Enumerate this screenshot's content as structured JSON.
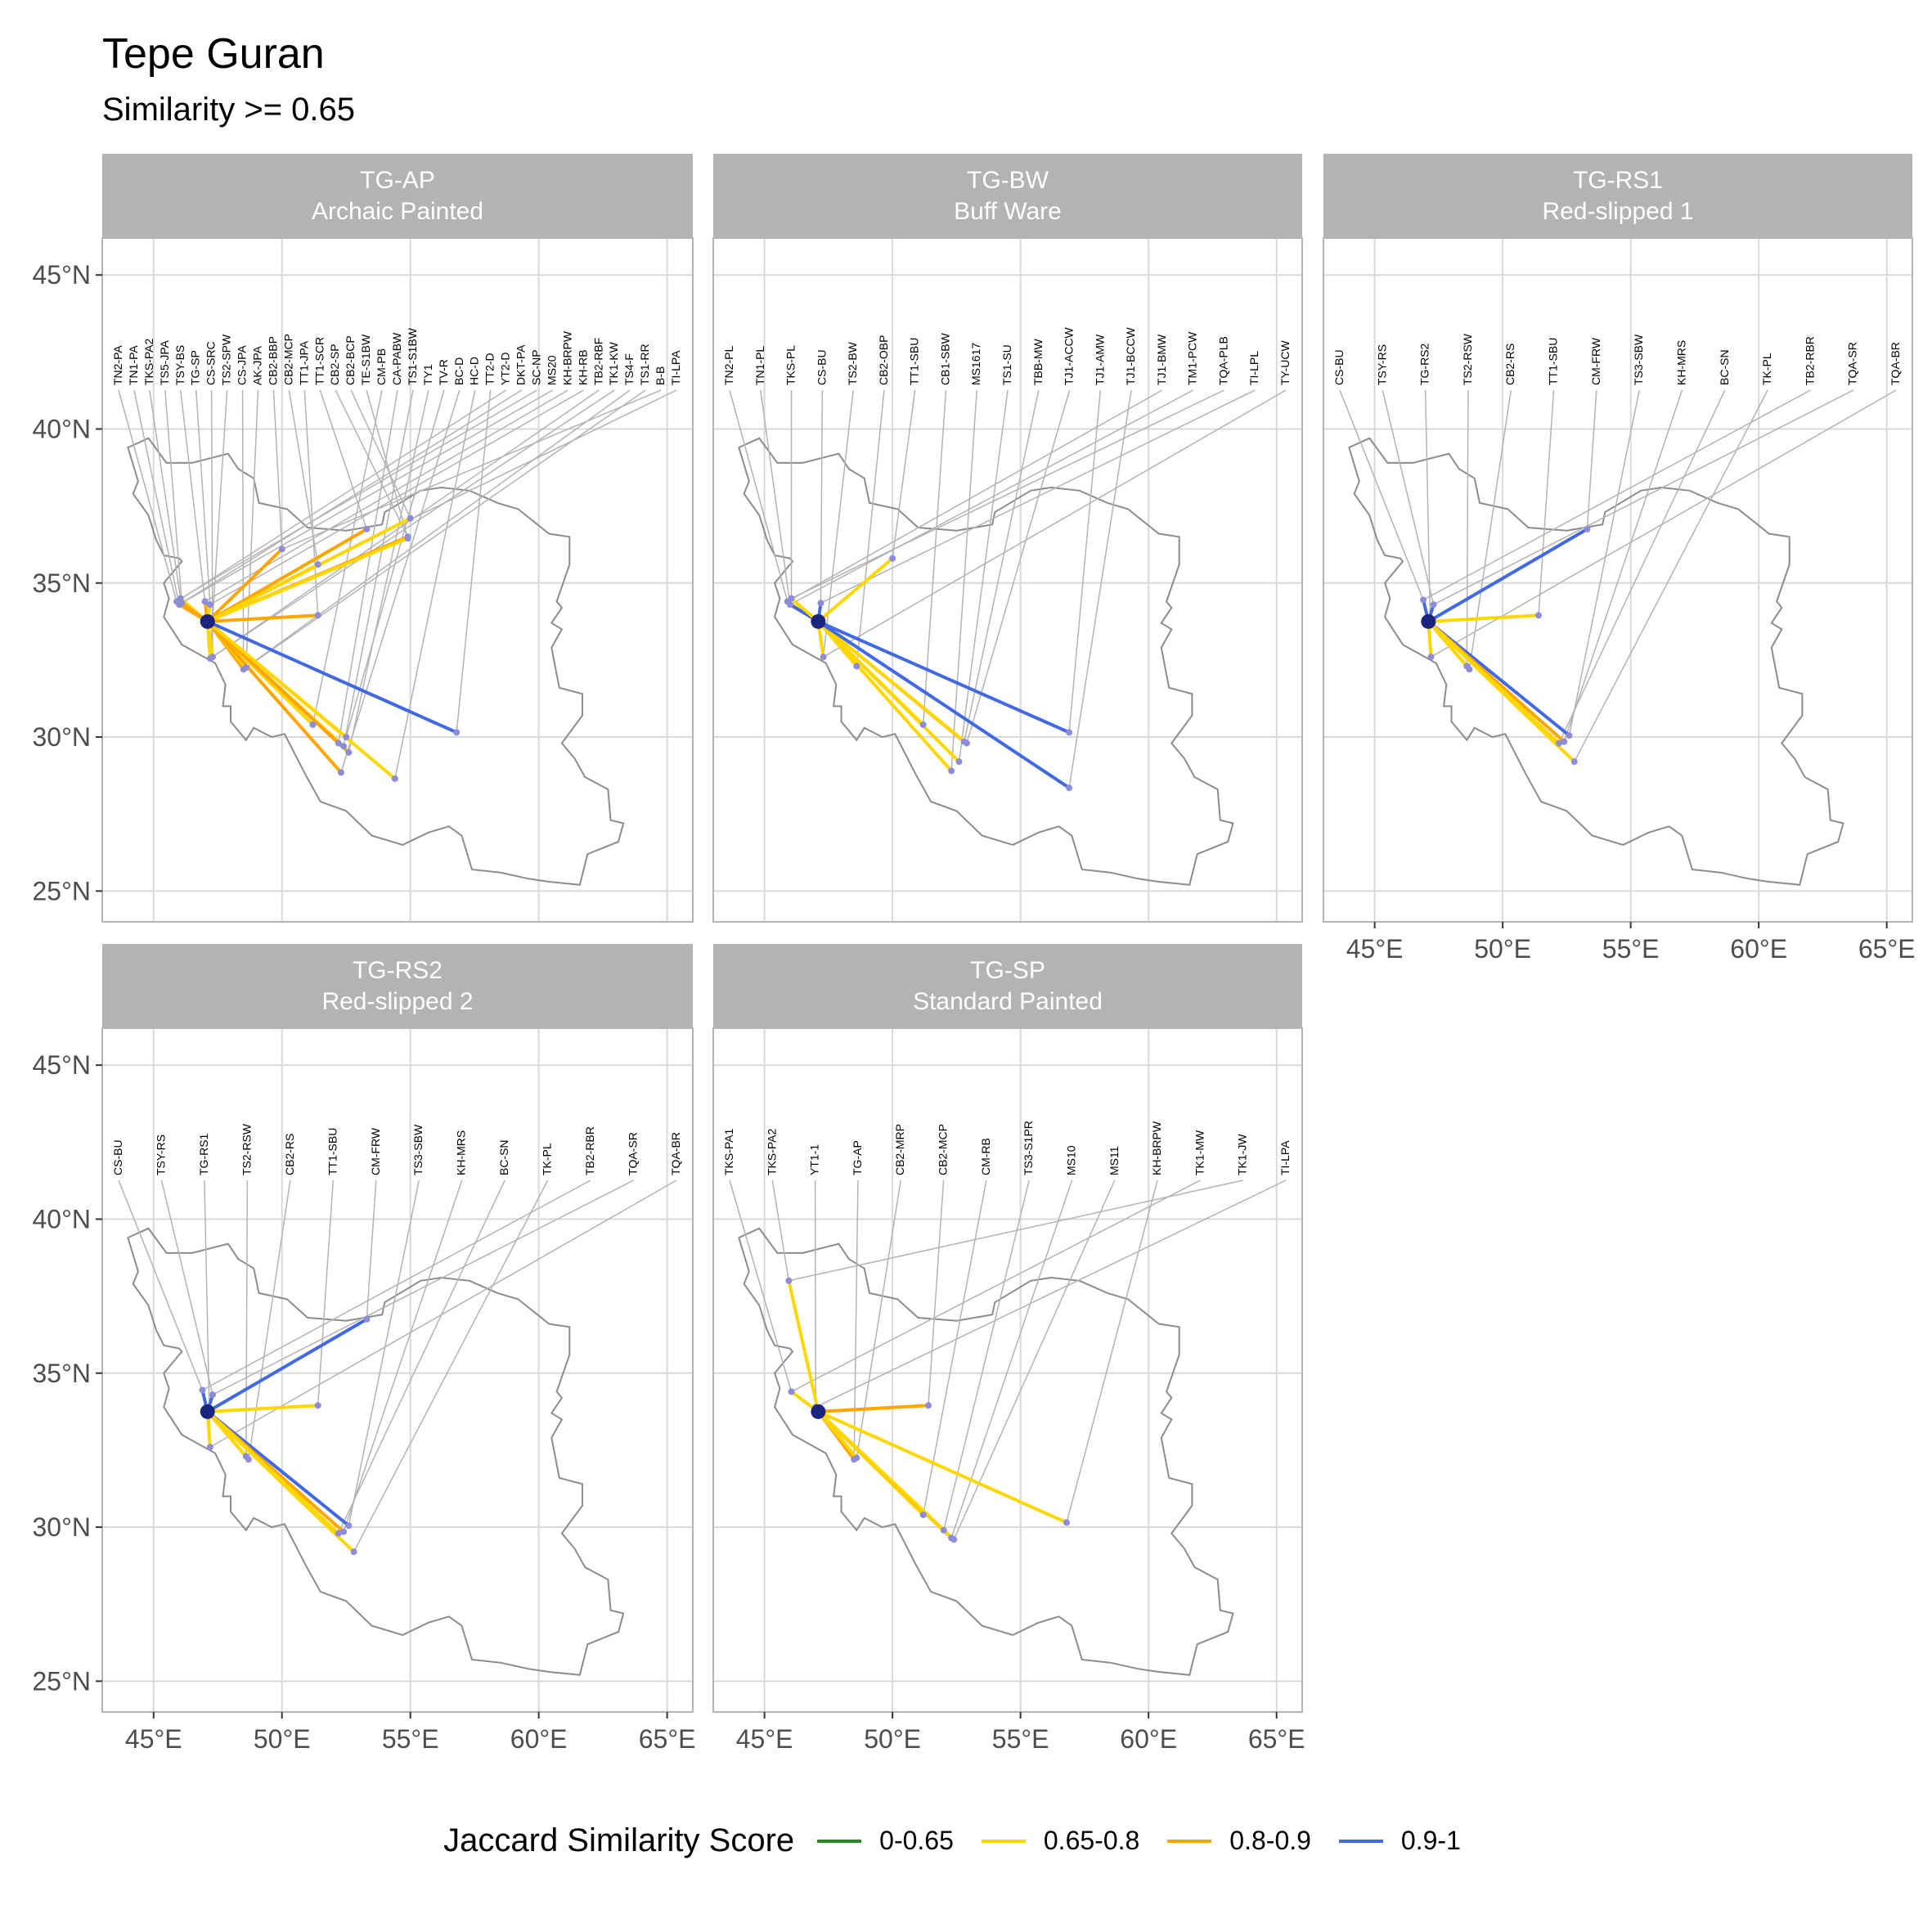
{
  "title": "Tepe Guran",
  "subtitle": "Similarity >= 0.65",
  "legend": {
    "title": "Jaccard Similarity Score",
    "items": [
      {
        "label": "0-0.65",
        "color": "#228B22"
      },
      {
        "label": "0.65-0.8",
        "color": "#FFD700"
      },
      {
        "label": "0.8-0.9",
        "color": "#FFA500"
      },
      {
        "label": "0.9-1",
        "color": "#4169E1"
      }
    ]
  },
  "colors": {
    "strip_bg": "#b3b3b3",
    "grid": "#d9d9d9",
    "outline": "#8c8c8c",
    "leader": "#b3b3b3",
    "point": "#8c8cd9",
    "origin": "#1a237e"
  },
  "chart_data": {
    "type": "map-network",
    "x_axis": {
      "ticks": [
        "45°E",
        "50°E",
        "55°E",
        "60°E",
        "65°E"
      ],
      "values": [
        45,
        50,
        55,
        60,
        65
      ],
      "range": [
        43,
        66
      ]
    },
    "y_axis": {
      "ticks": [
        "25°N",
        "30°N",
        "35°N",
        "40°N",
        "45°N"
      ],
      "values": [
        25,
        30,
        35,
        40,
        45
      ],
      "range": [
        24,
        46.2
      ]
    },
    "origin": {
      "site": "TG",
      "lon": 47.1,
      "lat": 33.75
    },
    "panels": [
      {
        "code": "TG-AP",
        "name": "Archaic Painted",
        "labels": [
          "TN2-PA",
          "TN1-PA",
          "TKS-PA2",
          "TS5-JPA",
          "TSY-BS",
          "TG-SP",
          "CS-SRC",
          "TS2-SPW",
          "CS-JPA",
          "AK-JPA",
          "CB2-BBP",
          "CB2-MCP",
          "TT1-JPA",
          "TT1-SCR",
          "CB2-SP",
          "CB2-BCP",
          "TE-S1BW",
          "CM-PB",
          "CA-PABW",
          "TS1-S1BW",
          "TY1",
          "TV-R",
          "BC-D",
          "HC-D",
          "TT2-D",
          "YT2-D",
          "DKT-PA",
          "SC-NP",
          "MS20",
          "KH-BRPW",
          "KH-RB",
          "TB2-RBF",
          "TK1-KW",
          "TS4-F",
          "TS1-RR",
          "B-B",
          "TI-LPA"
        ],
        "sites": [
          {
            "lon": 45.9,
            "lat": 34.4,
            "band": "0.8-0.9"
          },
          {
            "lon": 46.0,
            "lat": 34.3,
            "band": "0.8-0.9"
          },
          {
            "lon": 46.05,
            "lat": 34.5,
            "band": "0.65-0.8"
          },
          {
            "lon": 46.1,
            "lat": 34.35,
            "band": "0.8-0.9"
          },
          {
            "lon": 47.0,
            "lat": 34.4,
            "band": "0.8-0.9"
          },
          {
            "lon": 47.2,
            "lat": 34.3,
            "band": "0.65-0.8"
          },
          {
            "lon": 47.3,
            "lat": 32.6,
            "band": "0.65-0.8"
          },
          {
            "lon": 47.2,
            "lat": 32.55,
            "band": "0.65-0.8"
          },
          {
            "lon": 48.5,
            "lat": 32.2,
            "band": "0.8-0.9"
          },
          {
            "lon": 48.6,
            "lat": 32.25,
            "band": "0.65-0.8"
          },
          {
            "lon": 50.0,
            "lat": 36.1,
            "band": "0.8-0.9"
          },
          {
            "lon": 51.4,
            "lat": 35.6,
            "band": "0.65-0.8"
          },
          {
            "lon": 51.4,
            "lat": 33.95,
            "band": "0.8-0.9"
          },
          {
            "lon": 53.3,
            "lat": 36.75,
            "band": "0.8-0.9"
          },
          {
            "lon": 54.9,
            "lat": 36.5,
            "band": "0.8-0.9"
          },
          {
            "lon": 55.0,
            "lat": 37.1,
            "band": "0.65-0.8"
          },
          {
            "lon": 54.9,
            "lat": 36.45,
            "band": "0.65-0.8"
          },
          {
            "lon": 51.2,
            "lat": 30.4,
            "band": "0.65-0.8"
          },
          {
            "lon": 52.2,
            "lat": 29.8,
            "band": "0.8-0.9"
          },
          {
            "lon": 52.4,
            "lat": 29.7,
            "band": "0.65-0.8"
          },
          {
            "lon": 52.6,
            "lat": 29.5,
            "band": "0.8-0.9"
          },
          {
            "lon": 52.5,
            "lat": 30.0,
            "band": "0.65-0.8"
          },
          {
            "lon": 52.3,
            "lat": 28.85,
            "band": "0.8-0.9"
          },
          {
            "lon": 54.4,
            "lat": 28.65,
            "band": "0.65-0.8"
          },
          {
            "lon": 56.8,
            "lat": 30.15,
            "band": "0.9-1"
          }
        ]
      },
      {
        "code": "TG-BW",
        "name": "Buff Ware",
        "labels": [
          "TN2-PL",
          "TN1-PL",
          "TKS-PL",
          "CS-BU",
          "TS2-BW",
          "CB2-OBP",
          "TT1-SBU",
          "CB1-SBW",
          "MS1617",
          "TS1-SU",
          "TBB-MW",
          "TJ1-ACCW",
          "TJ1-AMW",
          "TJ1-BCCW",
          "TJ1-BMW",
          "TM1-PCW",
          "TQA-PLB",
          "TI-LPL",
          "TY-UCW"
        ],
        "sites": [
          {
            "lon": 45.9,
            "lat": 34.4,
            "band": "0.65-0.8"
          },
          {
            "lon": 46.0,
            "lat": 34.3,
            "band": "0.9-1"
          },
          {
            "lon": 46.05,
            "lat": 34.5,
            "band": "0.65-0.8"
          },
          {
            "lon": 47.2,
            "lat": 34.35,
            "band": "0.9-1"
          },
          {
            "lon": 47.3,
            "lat": 32.6,
            "band": "0.65-0.8"
          },
          {
            "lon": 48.6,
            "lat": 32.3,
            "band": "0.65-0.8"
          },
          {
            "lon": 50.0,
            "lat": 35.8,
            "band": "0.65-0.8"
          },
          {
            "lon": 51.2,
            "lat": 30.4,
            "band": "0.65-0.8"
          },
          {
            "lon": 52.3,
            "lat": 28.9,
            "band": "0.65-0.8"
          },
          {
            "lon": 52.6,
            "lat": 29.2,
            "band": "0.65-0.8"
          },
          {
            "lon": 52.8,
            "lat": 29.85,
            "band": "0.8-0.9"
          },
          {
            "lon": 52.9,
            "lat": 29.8,
            "band": "0.65-0.8"
          },
          {
            "lon": 56.9,
            "lat": 30.15,
            "band": "0.9-1"
          },
          {
            "lon": 56.9,
            "lat": 28.35,
            "band": "0.9-1"
          }
        ]
      },
      {
        "code": "TG-RS1",
        "name": "Red-slipped 1",
        "labels": [
          "CS-BU",
          "TSY-RS",
          "TG-RS2",
          "TS2-RSW",
          "CB2-RS",
          "TT1-SBU",
          "CM-FRW",
          "TS3-SBW",
          "KH-MRS",
          "BC-SN",
          "TK-PL",
          "TB2-RBR",
          "TQA-SR",
          "TQA-BR"
        ],
        "sites": [
          {
            "lon": 46.9,
            "lat": 34.45,
            "band": "0.9-1"
          },
          {
            "lon": 47.3,
            "lat": 34.3,
            "band": "0.9-1"
          },
          {
            "lon": 47.2,
            "lat": 32.6,
            "band": "0.65-0.8"
          },
          {
            "lon": 48.6,
            "lat": 32.3,
            "band": "0.8-0.9"
          },
          {
            "lon": 48.7,
            "lat": 32.2,
            "band": "0.65-0.8"
          },
          {
            "lon": 51.4,
            "lat": 33.95,
            "band": "0.65-0.8"
          },
          {
            "lon": 53.3,
            "lat": 36.75,
            "band": "0.9-1"
          },
          {
            "lon": 52.6,
            "lat": 30.05,
            "band": "0.9-1"
          },
          {
            "lon": 52.4,
            "lat": 29.85,
            "band": "0.8-0.9"
          },
          {
            "lon": 52.2,
            "lat": 29.8,
            "band": "0.65-0.8"
          },
          {
            "lon": 52.8,
            "lat": 29.2,
            "band": "0.65-0.8"
          }
        ]
      },
      {
        "code": "TG-RS2",
        "name": "Red-slipped 2",
        "labels": [
          "CS-BU",
          "TSY-RS",
          "TG-RS1",
          "TS2-RSW",
          "CB2-RS",
          "TT1-SBU",
          "CM-FRW",
          "TS3-SBW",
          "KH-MRS",
          "BC-SN",
          "TK-PL",
          "TB2-RBR",
          "TQA-SR",
          "TQA-BR"
        ],
        "sites": [
          {
            "lon": 46.9,
            "lat": 34.45,
            "band": "0.9-1"
          },
          {
            "lon": 47.3,
            "lat": 34.3,
            "band": "0.9-1"
          },
          {
            "lon": 47.2,
            "lat": 32.6,
            "band": "0.65-0.8"
          },
          {
            "lon": 48.6,
            "lat": 32.3,
            "band": "0.8-0.9"
          },
          {
            "lon": 48.7,
            "lat": 32.2,
            "band": "0.65-0.8"
          },
          {
            "lon": 51.4,
            "lat": 33.95,
            "band": "0.65-0.8"
          },
          {
            "lon": 53.3,
            "lat": 36.75,
            "band": "0.9-1"
          },
          {
            "lon": 52.6,
            "lat": 30.05,
            "band": "0.9-1"
          },
          {
            "lon": 52.4,
            "lat": 29.85,
            "band": "0.8-0.9"
          },
          {
            "lon": 52.2,
            "lat": 29.8,
            "band": "0.65-0.8"
          },
          {
            "lon": 52.8,
            "lat": 29.2,
            "band": "0.65-0.8"
          }
        ]
      },
      {
        "code": "TG-SP",
        "name": "Standard Painted",
        "labels": [
          "TKS-PA1",
          "TKS-PA2",
          "YT1-1",
          "TG-AP",
          "CB2-MRP",
          "CB2-MCP",
          "CM-RB",
          "TS3-S1PR",
          "MS10",
          "MS11",
          "KH-BRPW",
          "TK1-MW",
          "TK1-JW",
          "TI-LPA"
        ],
        "sites": [
          {
            "lon": 46.05,
            "lat": 34.4,
            "band": "0.65-0.8"
          },
          {
            "lon": 45.95,
            "lat": 38.0,
            "band": "0.65-0.8"
          },
          {
            "lon": 47.0,
            "lat": 33.9,
            "band": "0.8-0.9"
          },
          {
            "lon": 48.5,
            "lat": 32.2,
            "band": "0.8-0.9"
          },
          {
            "lon": 48.6,
            "lat": 32.25,
            "band": "0.65-0.8"
          },
          {
            "lon": 51.4,
            "lat": 33.95,
            "band": "0.8-0.9"
          },
          {
            "lon": 51.2,
            "lat": 30.4,
            "band": "0.65-0.8"
          },
          {
            "lon": 52.0,
            "lat": 29.9,
            "band": "0.8-0.9"
          },
          {
            "lon": 52.3,
            "lat": 29.65,
            "band": "0.8-0.9"
          },
          {
            "lon": 52.4,
            "lat": 29.6,
            "band": "0.65-0.8"
          },
          {
            "lon": 56.8,
            "lat": 30.15,
            "band": "0.65-0.8"
          }
        ]
      }
    ]
  }
}
